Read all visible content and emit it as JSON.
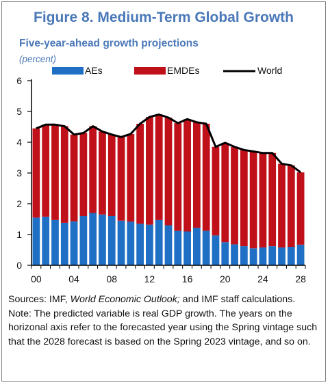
{
  "title": "Figure 8. Medium-Term Global Growth",
  "subtitle": "Five-year-ahead growth projections",
  "unit": "(percent)",
  "colors": {
    "aes": "#1f6fc5",
    "emdes": "#c0101a",
    "world": "#000000",
    "title": "#4a78b8"
  },
  "notes": {
    "sources_prefix": "Sources: IMF, ",
    "sources_italic": "World Economic Outlook;",
    "sources_suffix": " and IMF staff calculations.",
    "note": "Note: The predicted variable is real GDP growth. The years on the horizonal axis refer to the forecasted year using the Spring vintage such that the 2028 forecast is based on the Spring 2023 vintage, and so on."
  },
  "chart_data": {
    "type": "bar",
    "stacked": true,
    "x": [
      2000,
      2001,
      2002,
      2003,
      2004,
      2005,
      2006,
      2007,
      2008,
      2009,
      2010,
      2011,
      2012,
      2013,
      2014,
      2015,
      2016,
      2017,
      2018,
      2019,
      2020,
      2021,
      2022,
      2023,
      2024,
      2025,
      2026,
      2027,
      2028
    ],
    "x_tick_labels": [
      "00",
      "04",
      "08",
      "12",
      "16",
      "20",
      "24",
      "28"
    ],
    "x_tick_years": [
      2000,
      2004,
      2008,
      2012,
      2016,
      2020,
      2024,
      2028
    ],
    "series": [
      {
        "name": "AEs",
        "kind": "bar",
        "values": [
          1.55,
          1.58,
          1.47,
          1.38,
          1.43,
          1.6,
          1.7,
          1.65,
          1.6,
          1.45,
          1.42,
          1.35,
          1.32,
          1.47,
          1.3,
          1.12,
          1.1,
          1.22,
          1.12,
          0.97,
          0.75,
          0.68,
          0.62,
          0.55,
          0.58,
          0.62,
          0.58,
          0.6,
          0.67
        ]
      },
      {
        "name": "EMDEs",
        "kind": "bar",
        "values": [
          2.9,
          2.99,
          3.1,
          3.14,
          2.82,
          2.7,
          2.82,
          2.7,
          2.65,
          2.72,
          2.85,
          3.25,
          3.5,
          3.43,
          3.5,
          3.5,
          3.65,
          3.43,
          3.48,
          2.88,
          3.23,
          3.17,
          3.13,
          3.15,
          3.07,
          3.03,
          2.72,
          2.65,
          2.35
        ]
      },
      {
        "name": "World",
        "kind": "line",
        "values": [
          4.45,
          4.57,
          4.57,
          4.52,
          4.25,
          4.3,
          4.52,
          4.35,
          4.25,
          4.17,
          4.27,
          4.6,
          4.82,
          4.9,
          4.8,
          4.62,
          4.75,
          4.65,
          4.6,
          3.85,
          3.98,
          3.85,
          3.75,
          3.7,
          3.65,
          3.65,
          3.3,
          3.25,
          3.02
        ]
      }
    ],
    "ylim": [
      0,
      6
    ],
    "yticks": [
      0,
      1,
      2,
      3,
      4,
      5,
      6
    ],
    "xlabel": "",
    "ylabel": "",
    "legend": "top",
    "grid": false
  }
}
